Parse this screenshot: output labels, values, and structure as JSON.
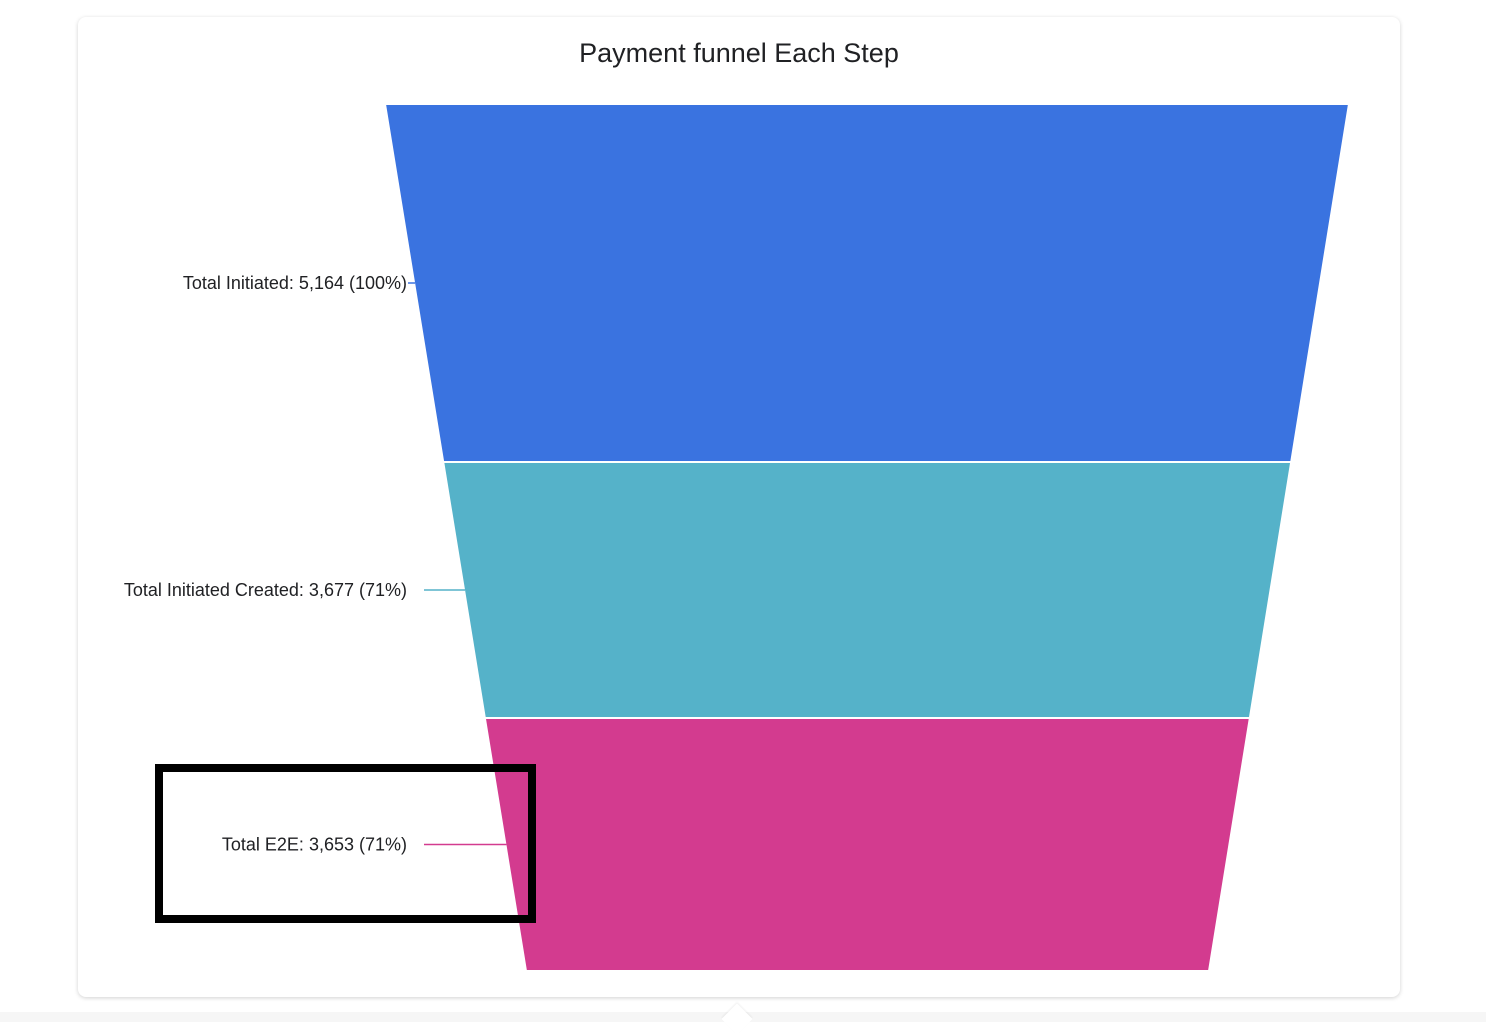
{
  "chart_data": {
    "type": "funnel",
    "title": "Payment funnel Each Step",
    "stages": [
      {
        "name": "Total Initiated",
        "value": 5164,
        "percent": 100,
        "label": "Total Initiated: 5,164 (100%)",
        "color": "#3a73e0"
      },
      {
        "name": "Total Initiated Created",
        "value": 3677,
        "percent": 71,
        "label": "Total Initiated Created: 3,677 (71%)",
        "color": "#55b2c9"
      },
      {
        "name": "Total E2E",
        "value": 3653,
        "percent": 71,
        "label": "Total E2E: 3,653 (71%)",
        "color": "#d33b8f"
      }
    ],
    "highlight": {
      "stage": "Total E2E",
      "color": "#000000"
    }
  }
}
